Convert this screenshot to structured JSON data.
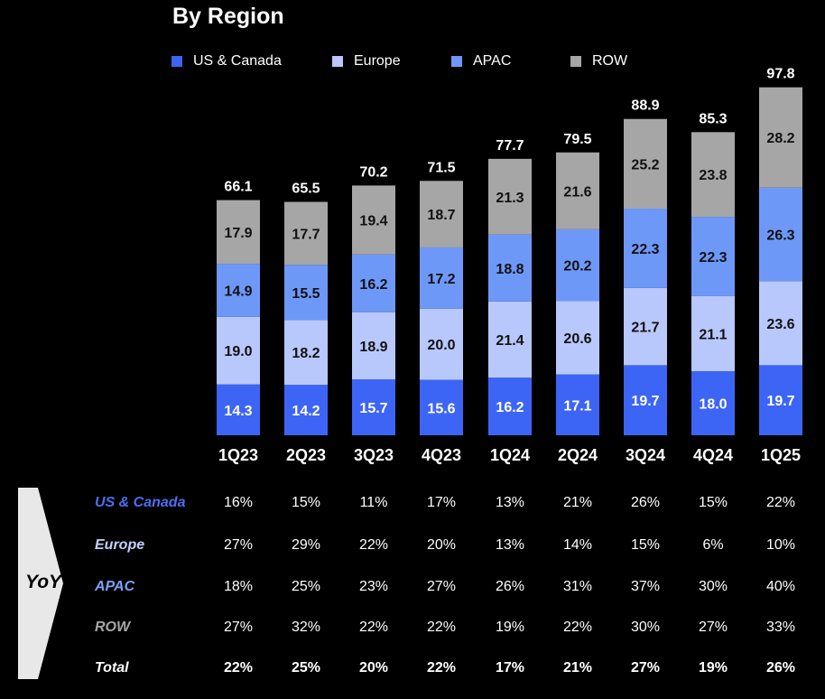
{
  "chart_data": {
    "type": "bar",
    "stacked": true,
    "title": "By Region",
    "categories": [
      "1Q23",
      "2Q23",
      "3Q23",
      "4Q23",
      "1Q24",
      "2Q24",
      "3Q24",
      "4Q24",
      "1Q25"
    ],
    "series": [
      {
        "name": "US & Canada",
        "color": "#3d65f5",
        "values": [
          14.3,
          14.2,
          15.7,
          15.6,
          16.2,
          17.1,
          19.7,
          18.0,
          19.7
        ],
        "labels": [
          "14.3",
          "14.2",
          "15.7",
          "15.6",
          "16.2",
          "17.1",
          "19.7",
          "18.0",
          "19.7"
        ]
      },
      {
        "name": "Europe",
        "color": "#b8c8fc",
        "values": [
          19.0,
          18.2,
          18.9,
          20.0,
          21.4,
          20.6,
          21.7,
          21.1,
          23.6
        ],
        "labels": [
          "19.0",
          "18.2",
          "18.9",
          "20.0",
          "21.4",
          "20.6",
          "21.7",
          "21.1",
          "23.6"
        ]
      },
      {
        "name": "APAC",
        "color": "#6e98f8",
        "values": [
          14.9,
          15.5,
          16.2,
          17.2,
          18.8,
          20.2,
          22.3,
          22.3,
          26.3
        ],
        "labels": [
          "14.9",
          "15.5",
          "16.2",
          "17.2",
          "18.8",
          "20.2",
          "22.3",
          "22.3",
          "26.3"
        ]
      },
      {
        "name": "ROW",
        "color": "#a6a6a6",
        "values": [
          17.9,
          17.7,
          19.4,
          18.7,
          21.3,
          21.6,
          25.2,
          23.8,
          28.2
        ],
        "labels": [
          "17.9",
          "17.7",
          "19.4",
          "18.7",
          "21.3",
          "21.6",
          "25.2",
          "23.8",
          "28.2"
        ]
      }
    ],
    "totals": [
      66.1,
      65.5,
      70.2,
      71.5,
      77.7,
      79.5,
      88.9,
      85.3,
      97.8
    ],
    "total_labels": [
      "66.1",
      "65.5",
      "70.2",
      "71.5",
      "77.7",
      "79.5",
      "88.9",
      "85.3",
      "97.8"
    ],
    "legend": "top",
    "grid": false
  },
  "yoy": {
    "badge": "YoY",
    "rows": [
      {
        "label": "US & Canada",
        "color": "#4b6ef5",
        "values": [
          "16%",
          "15%",
          "11%",
          "17%",
          "13%",
          "21%",
          "26%",
          "15%",
          "22%"
        ]
      },
      {
        "label": "Europe",
        "color": "#c3d0fc",
        "values": [
          "27%",
          "29%",
          "22%",
          "20%",
          "13%",
          "14%",
          "15%",
          "6%",
          "10%"
        ]
      },
      {
        "label": "APAC",
        "color": "#7aa0f8",
        "values": [
          "18%",
          "25%",
          "23%",
          "27%",
          "26%",
          "31%",
          "37%",
          "30%",
          "40%"
        ]
      },
      {
        "label": "ROW",
        "color": "#a6a6a6",
        "values": [
          "27%",
          "32%",
          "22%",
          "22%",
          "19%",
          "22%",
          "30%",
          "27%",
          "33%"
        ]
      },
      {
        "label": "Total",
        "color": "#ffffff",
        "values": [
          "22%",
          "25%",
          "20%",
          "22%",
          "17%",
          "21%",
          "27%",
          "19%",
          "26%"
        ]
      }
    ]
  }
}
